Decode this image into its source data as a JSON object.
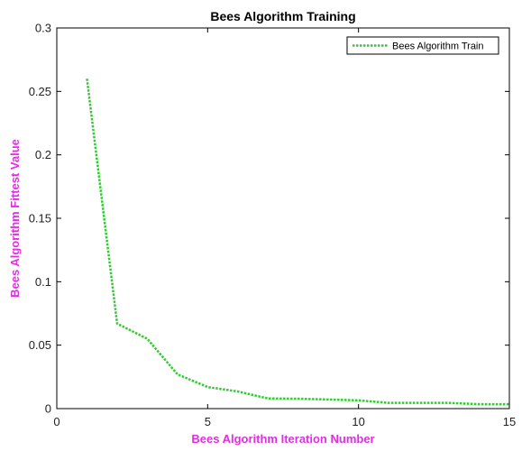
{
  "chart_data": {
    "type": "line",
    "title": "Bees Algorithm Training",
    "xlabel": "Bees Algorithm Iteration Number",
    "ylabel": "Bees Algorithm Fittest Value",
    "xlim": [
      0,
      15
    ],
    "ylim": [
      0,
      0.3
    ],
    "x_ticks": [
      0,
      5,
      10,
      15
    ],
    "y_ticks": [
      0,
      0.05,
      0.1,
      0.15,
      0.2,
      0.25,
      0.3
    ],
    "x_tick_labels": [
      "0",
      "5",
      "10",
      "15"
    ],
    "y_tick_labels": [
      "0",
      "0.05",
      "0.1",
      "0.15",
      "0.2",
      "0.25",
      "0.3"
    ],
    "grid": false,
    "legend_position": "top-right",
    "series": [
      {
        "name": "Bees Algorithm Train",
        "color": "#2ecc2e",
        "line_style": "dotted",
        "x": [
          1,
          2,
          3,
          4,
          5,
          6,
          7,
          8,
          9,
          10,
          11,
          12,
          13,
          14,
          15
        ],
        "y": [
          0.26,
          0.067,
          0.055,
          0.027,
          0.017,
          0.0135,
          0.008,
          0.0078,
          0.0072,
          0.0065,
          0.0045,
          0.0045,
          0.0045,
          0.0035,
          0.0035
        ]
      }
    ]
  },
  "colors": {
    "axis_title": "#e22ee2",
    "axes": "#000000"
  }
}
